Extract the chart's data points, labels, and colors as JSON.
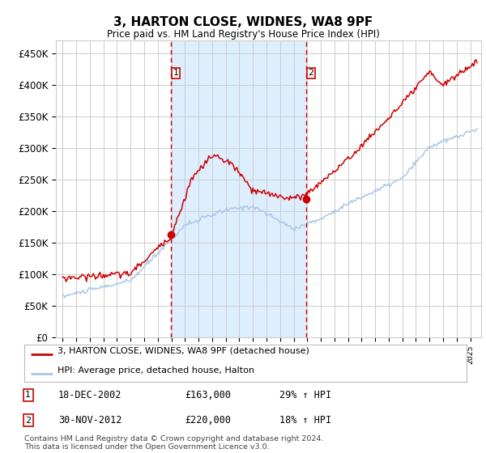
{
  "title": "3, HARTON CLOSE, WIDNES, WA8 9PF",
  "subtitle": "Price paid vs. HM Land Registry's House Price Index (HPI)",
  "ylabel_ticks": [
    "£0",
    "£50K",
    "£100K",
    "£150K",
    "£200K",
    "£250K",
    "£300K",
    "£350K",
    "£400K",
    "£450K"
  ],
  "ytick_values": [
    0,
    50000,
    100000,
    150000,
    200000,
    250000,
    300000,
    350000,
    400000,
    450000
  ],
  "ylim": [
    0,
    470000
  ],
  "xlim_start": 1994.5,
  "xlim_end": 2025.8,
  "sale1_x": 2002.96,
  "sale1_y": 163000,
  "sale1_label": "1",
  "sale2_x": 2012.92,
  "sale2_y": 220000,
  "sale2_label": "2",
  "shading_x1": 2002.96,
  "shading_x2": 2012.92,
  "hpi_line_color": "#aac8e8",
  "price_line_color": "#cc0000",
  "marker_color": "#cc0000",
  "dashed_line_color": "#dd0000",
  "shading_color": "#ddeeff",
  "legend_label1": "3, HARTON CLOSE, WIDNES, WA8 9PF (detached house)",
  "legend_label2": "HPI: Average price, detached house, Halton",
  "table_row1": [
    "1",
    "18-DEC-2002",
    "£163,000",
    "29% ↑ HPI"
  ],
  "table_row2": [
    "2",
    "30-NOV-2012",
    "£220,000",
    "18% ↑ HPI"
  ],
  "footnote": "Contains HM Land Registry data © Crown copyright and database right 2024.\nThis data is licensed under the Open Government Licence v3.0.",
  "background_color": "#ffffff",
  "grid_color": "#cccccc"
}
